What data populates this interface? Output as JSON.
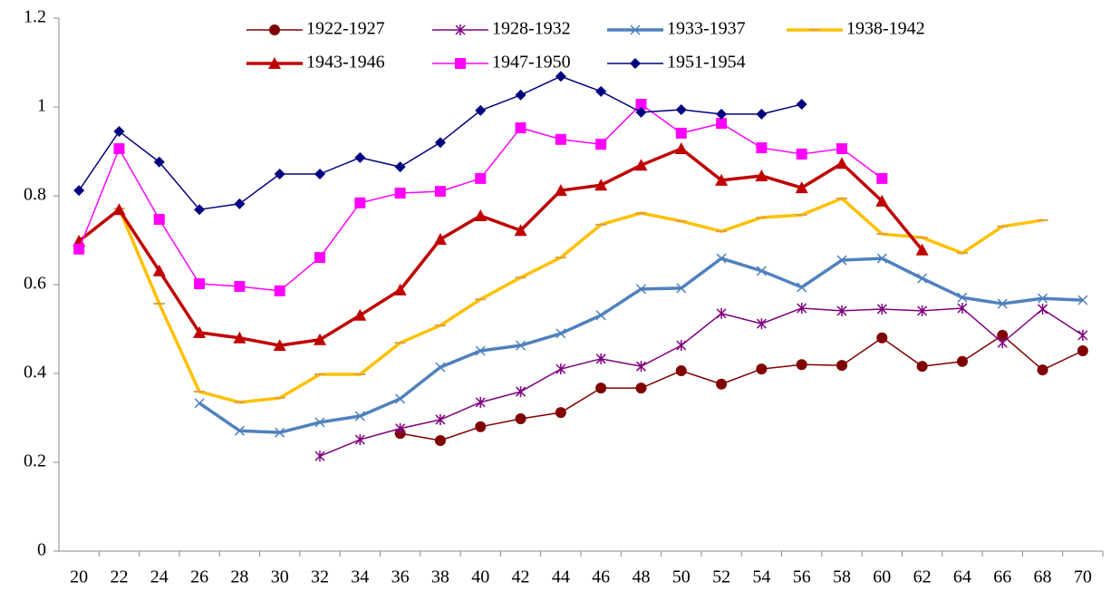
{
  "chart_data": {
    "type": "line",
    "categories": [
      "20",
      "22",
      "24",
      "26",
      "28",
      "30",
      "32",
      "34",
      "36",
      "38",
      "40",
      "42",
      "44",
      "46",
      "48",
      "50",
      "52",
      "54",
      "56",
      "58",
      "60",
      "62",
      "64",
      "66",
      "68",
      "70"
    ],
    "ylim": [
      0,
      1.2
    ],
    "yticks": [
      0,
      0.2,
      0.4,
      0.6,
      0.8,
      1,
      1.2
    ],
    "series": [
      {
        "name": "1922-1927",
        "color": "#800000",
        "marker": "circle",
        "width": 1.5,
        "values": [
          null,
          null,
          null,
          null,
          null,
          null,
          null,
          null,
          0.265,
          0.249,
          0.28,
          0.298,
          0.312,
          0.367,
          0.367,
          0.406,
          0.376,
          0.41,
          0.42,
          0.418,
          0.48,
          0.416,
          0.427,
          0.486,
          0.408,
          0.451
        ]
      },
      {
        "name": "1928-1932",
        "color": "#800080",
        "marker": "star",
        "width": 1.5,
        "values": [
          null,
          null,
          null,
          null,
          null,
          null,
          0.214,
          0.251,
          0.276,
          0.296,
          0.335,
          0.359,
          0.41,
          0.433,
          0.416,
          0.463,
          0.535,
          0.512,
          0.547,
          0.541,
          0.545,
          0.541,
          0.547,
          0.469,
          0.545,
          0.486
        ]
      },
      {
        "name": "1933-1937",
        "color": "#4f81bd",
        "marker": "x",
        "width": 3.5,
        "values": [
          null,
          null,
          null,
          0.333,
          0.271,
          0.267,
          0.29,
          0.304,
          0.343,
          0.414,
          0.451,
          0.463,
          0.49,
          0.531,
          0.59,
          0.592,
          0.659,
          0.631,
          0.594,
          0.655,
          0.659,
          0.614,
          0.571,
          0.557,
          0.569,
          0.565
        ]
      },
      {
        "name": "1938-1942",
        "color": "#ffc000",
        "marker": "dash",
        "width": 3.5,
        "values": [
          null,
          0.771,
          0.557,
          0.359,
          0.335,
          0.345,
          0.398,
          0.398,
          0.469,
          0.508,
          0.567,
          0.616,
          0.661,
          0.735,
          0.761,
          0.743,
          0.72,
          0.751,
          0.757,
          0.794,
          0.714,
          0.706,
          0.671,
          0.731,
          0.745,
          null
        ]
      },
      {
        "name": "1943-1946",
        "color": "#c00000",
        "marker": "triangle",
        "width": 3.5,
        "values": [
          0.698,
          0.769,
          0.631,
          0.492,
          0.48,
          0.463,
          0.476,
          0.531,
          0.588,
          0.702,
          0.755,
          0.722,
          0.812,
          0.824,
          0.869,
          0.906,
          0.835,
          0.845,
          0.818,
          0.873,
          0.788,
          0.678,
          null,
          null,
          null,
          null
        ]
      },
      {
        "name": "1947-1950",
        "color": "#ff00ff",
        "marker": "square",
        "width": 1.5,
        "values": [
          0.68,
          0.906,
          0.747,
          0.602,
          0.596,
          0.586,
          0.661,
          0.784,
          0.806,
          0.81,
          0.839,
          0.953,
          0.927,
          0.916,
          1.006,
          0.941,
          0.963,
          0.908,
          0.894,
          0.906,
          0.839,
          null,
          null,
          null,
          null,
          null
        ]
      },
      {
        "name": "1951-1954",
        "color": "#000080",
        "marker": "diamond",
        "width": 1.5,
        "values": [
          0.812,
          0.945,
          0.876,
          0.769,
          0.782,
          0.849,
          0.849,
          0.886,
          0.865,
          0.92,
          0.992,
          1.027,
          1.069,
          1.035,
          0.988,
          0.994,
          0.984,
          0.984,
          1.006,
          null,
          null,
          null,
          null,
          null,
          null,
          null
        ]
      }
    ]
  }
}
